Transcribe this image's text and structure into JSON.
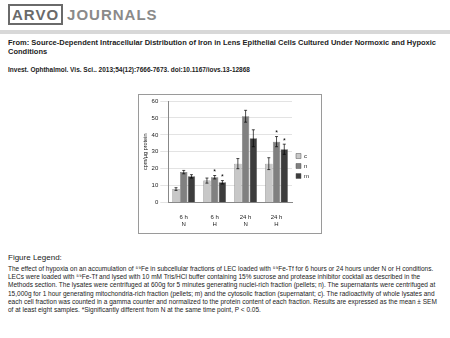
{
  "header": {
    "logo": "ARVO",
    "logo_word": "JOURNALS",
    "title": "From: Source-Dependent Intracellular Distribution of Iron in Lens Epithelial Cells Cultured Under Normoxic and Hypoxic Conditions",
    "citation": "Invest. Ophthalmol. Vis. Sci.. 2013;54(12):7666-7673. doi:10.1167/iovs.13-12868"
  },
  "chart_data": {
    "type": "bar",
    "y_label": "cpm/µg protein",
    "categories": [
      "6 h",
      "6 h",
      "24 h",
      "24 h"
    ],
    "groups": [
      "N",
      "H",
      "N",
      "H"
    ],
    "series": [
      {
        "name": "c",
        "color": "#c8c8c8",
        "values": [
          8,
          13,
          23,
          23
        ],
        "errors": [
          0.8,
          1.5,
          3,
          3.5
        ],
        "significant": [
          false,
          false,
          false,
          false
        ]
      },
      {
        "name": "n",
        "color": "#808080",
        "values": [
          18,
          15,
          51,
          36
        ],
        "errors": [
          1,
          1,
          3.5,
          3
        ],
        "significant": [
          false,
          true,
          false,
          true
        ]
      },
      {
        "name": "m",
        "color": "#3c3c3c",
        "values": [
          15.5,
          12,
          38,
          31.5
        ],
        "errors": [
          1,
          1,
          5,
          3
        ],
        "significant": [
          false,
          true,
          false,
          true
        ]
      }
    ],
    "significance_mark": "*",
    "ylim": [
      0,
      60
    ],
    "yticks": [
      0,
      10,
      20,
      30,
      40,
      50,
      60
    ],
    "grid": true,
    "legend": "right"
  },
  "figure_legend": {
    "heading": "Figure Legend:",
    "text": "The effect of hypoxia on an accumulation of ⁵⁹Fe in subcellular fractions of LEC loaded with ⁵⁹Fe-Tf for 6 hours or 24 hours under N or H conditions. LECs were loaded with ⁵⁹Fe-Tf and lysed with 10 mM Tris/HCl buffer containing 15% sucrose and protease inhibitor cocktail as described in the Methods section. The lysates were centrifuged at 600g for 5 minutes generating nuclei-rich fraction (pellets; n). The supernatants were centrifuged at 15,000g for 1 hour generating mitochondria-rich fraction (pellets; m) and the cytosolic fraction (supernatant; c). The radioactivity of whole lysates and each cell fraction was counted in a gamma counter and normalized to the protein content of each fraction. Results are expressed as the mean ± SEM of at least eight samples. *Significantly different from N at the same time point, P < 0.05."
  }
}
